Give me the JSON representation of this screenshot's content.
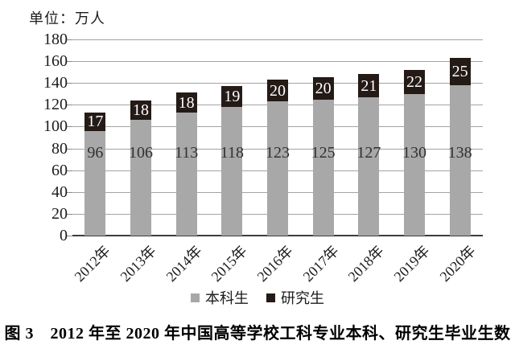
{
  "unit_label": "单位：万人",
  "caption": "图 3　2012 年至 2020 年中国高等学校工科专业本科、研究生毕业生数",
  "legend": {
    "undergrad_label": "本科生",
    "grad_label": "研究生"
  },
  "colors": {
    "undergrad_bar": "#a8a8a8",
    "grad_bar": "#241a16",
    "gridline": "#a3a3a3",
    "axis": "#3d3d3d",
    "undergrad_value_text": "#333030",
    "grad_value_text": "#ffffff"
  },
  "chart_data": {
    "type": "bar",
    "stacked": true,
    "title": "图 3　2012 年至 2020 年中国高等学校工科专业本科、研究生毕业生数",
    "unit": "万人",
    "categories": [
      "2012年",
      "2013年",
      "2014年",
      "2015年",
      "2016年",
      "2017年",
      "2018年",
      "2019年",
      "2020年"
    ],
    "series": [
      {
        "name": "本科生",
        "color": "#a8a8a8",
        "values": [
          96,
          106,
          113,
          118,
          123,
          125,
          127,
          130,
          138
        ]
      },
      {
        "name": "研究生",
        "color": "#241a16",
        "values": [
          17,
          18,
          18,
          19,
          20,
          20,
          21,
          22,
          25
        ]
      }
    ],
    "totals": [
      113,
      124,
      131,
      137,
      143,
      145,
      148,
      152,
      163
    ],
    "ylim": [
      0,
      180
    ],
    "y_ticks": [
      0,
      20,
      40,
      60,
      80,
      100,
      120,
      140,
      160,
      180
    ],
    "grid": true,
    "legend_position": "bottom",
    "xlabel": "",
    "ylabel": "单位：万人"
  }
}
